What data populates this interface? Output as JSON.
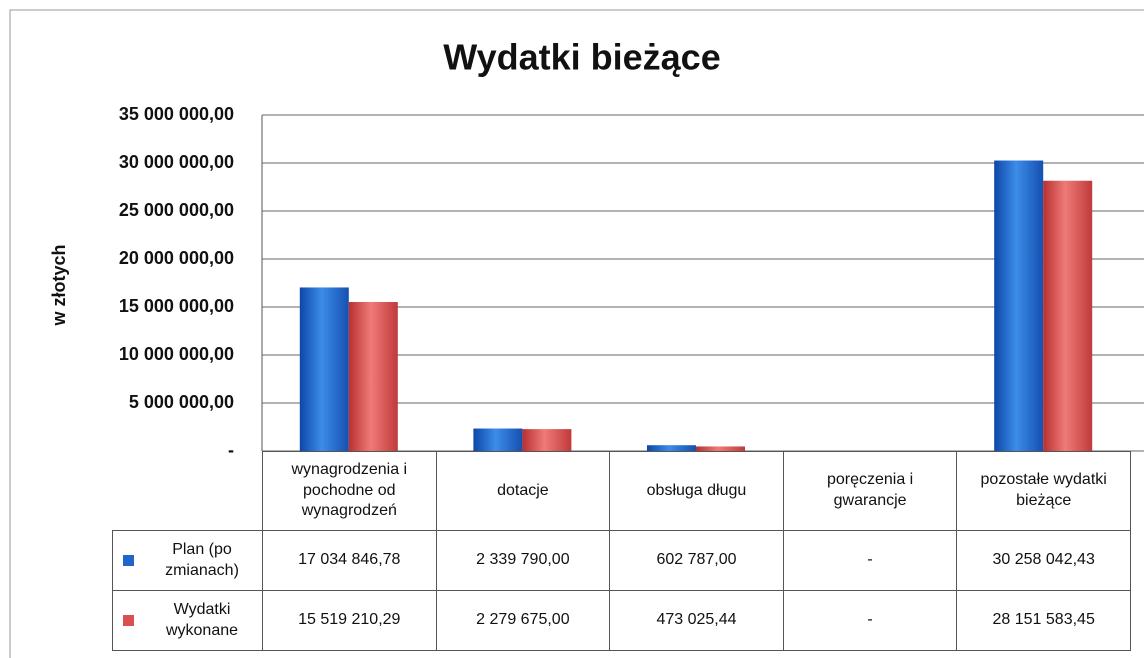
{
  "chart_data": {
    "type": "bar",
    "title": "Wydatki bieżące",
    "ylabel": "w złotych",
    "categories": [
      "wynagrodzenia i pochodne od wynagrodzeń",
      "dotacje",
      "obsługa długu",
      "poręczenia i gwarancje",
      "pozostałe wydatki bieżące"
    ],
    "series": [
      {
        "name": "Plan (po zmianach)",
        "color": "#1f66c9",
        "values": [
          17034846.78,
          2339790,
          602787,
          0,
          30258042.43
        ],
        "value_labels": [
          "17 034 846,78",
          "2 339 790,00",
          "602 787,00",
          "-",
          "30 258 042,43"
        ]
      },
      {
        "name": "Wydatki wykonane",
        "color": "#d9504f",
        "values": [
          15519210.29,
          2279675,
          473025.44,
          0,
          28151583.45
        ],
        "value_labels": [
          "15 519 210,29",
          "2 279 675,00",
          "473 025,44",
          "-",
          "28 151 583,45"
        ]
      }
    ],
    "ylim": [
      0,
      35000000
    ],
    "yticks": [
      {
        "value": 0,
        "label": "-"
      },
      {
        "value": 5000000,
        "label": "5 000 000,00"
      },
      {
        "value": 10000000,
        "label": "10 000 000,00"
      },
      {
        "value": 15000000,
        "label": "15 000 000,00"
      },
      {
        "value": 20000000,
        "label": "20 000 000,00"
      },
      {
        "value": 25000000,
        "label": "25 000 000,00"
      },
      {
        "value": 30000000,
        "label": "30 000 000,00"
      },
      {
        "value": 35000000,
        "label": "35 000 000,00"
      }
    ],
    "grid": true
  }
}
